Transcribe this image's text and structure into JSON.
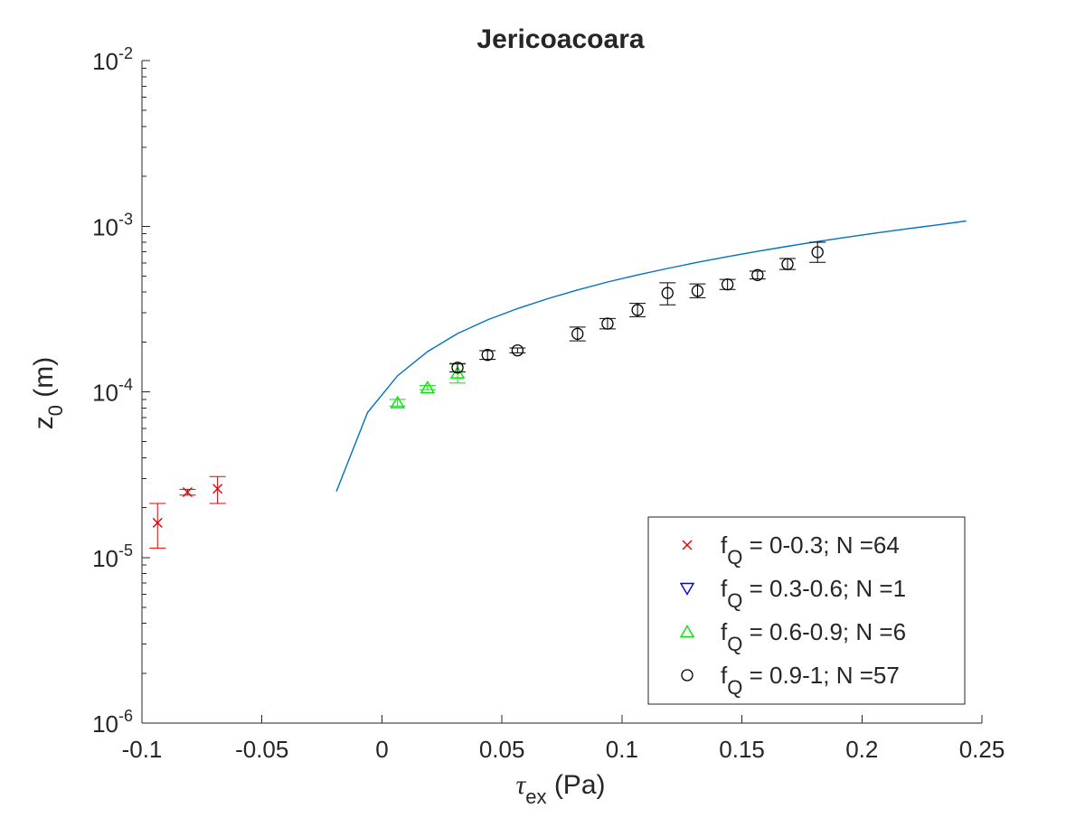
{
  "chart_data": {
    "type": "scatter",
    "title": "Jericoacoara",
    "xlabel": {
      "symbol": "τ",
      "subscript": "ex",
      "unit": " (Pa)"
    },
    "ylabel": {
      "symbol": "z",
      "subscript": "0",
      "unit": " (m)"
    },
    "xlim": [
      -0.1,
      0.25
    ],
    "ylim": [
      1e-06,
      0.01
    ],
    "yscale": "log",
    "xticks": [
      -0.1,
      -0.05,
      0,
      0.05,
      0.1,
      0.15,
      0.2,
      0.25
    ],
    "xtick_labels": [
      "-0.1",
      "-0.05",
      "0",
      "0.05",
      "0.1",
      "0.15",
      "0.2",
      "0.25"
    ],
    "yticks": [
      {
        "value": 1e-06,
        "base": "10",
        "exp": "-6"
      },
      {
        "value": 1e-05,
        "base": "10",
        "exp": "-5"
      },
      {
        "value": 0.0001,
        "base": "10",
        "exp": "-4"
      },
      {
        "value": 0.001,
        "base": "10",
        "exp": "-3"
      },
      {
        "value": 0.01,
        "base": "10",
        "exp": "-2"
      }
    ],
    "grid": false,
    "legend_position": "bottom-right",
    "series": [
      {
        "legend_label": {
          "f": "f",
          "sub": "Q",
          "rest": " = 0-0.3; N =64"
        },
        "marker": "x",
        "color": "#e60000",
        "points": [
          {
            "x": -0.0935,
            "y": 1.62e-05,
            "lo": 1.14e-05,
            "hi": 2.12e-05
          },
          {
            "x": -0.081,
            "y": 2.48e-05,
            "lo": 2.38e-05,
            "hi": 2.58e-05
          },
          {
            "x": -0.0685,
            "y": 2.6e-05,
            "lo": 2.12e-05,
            "hi": 3.08e-05
          }
        ]
      },
      {
        "legend_label": {
          "f": "f",
          "sub": "Q",
          "rest": " = 0.3-0.6; N =1"
        },
        "marker": "triangle-down",
        "color": "#0000e6",
        "points": []
      },
      {
        "legend_label": {
          "f": "f",
          "sub": "Q",
          "rest": " = 0.6-0.9; N =6"
        },
        "marker": "triangle-up",
        "color": "#00e600",
        "points": [
          {
            "x": 0.0065,
            "y": 8.6e-05,
            "lo": 8.2e-05,
            "hi": 9e-05
          },
          {
            "x": 0.019,
            "y": 0.000106,
            "lo": 0.000103,
            "hi": 0.000109
          },
          {
            "x": 0.0315,
            "y": 0.00013,
            "lo": 0.000113,
            "hi": 0.000147
          }
        ]
      },
      {
        "legend_label": {
          "f": "f",
          "sub": "Q",
          "rest": " = 0.9-1; N =57"
        },
        "marker": "circle",
        "color": "#000000",
        "points": [
          {
            "x": 0.0315,
            "y": 0.00014,
            "lo": 0.000132,
            "hi": 0.000148
          },
          {
            "x": 0.044,
            "y": 0.000167,
            "lo": 0.000157,
            "hi": 0.000177
          },
          {
            "x": 0.0565,
            "y": 0.000178,
            "lo": 0.000172,
            "hi": 0.000184
          },
          {
            "x": 0.0815,
            "y": 0.000224,
            "lo": 0.000203,
            "hi": 0.000246
          },
          {
            "x": 0.094,
            "y": 0.000258,
            "lo": 0.00024,
            "hi": 0.000277
          },
          {
            "x": 0.1065,
            "y": 0.000312,
            "lo": 0.000284,
            "hi": 0.000342
          },
          {
            "x": 0.119,
            "y": 0.000395,
            "lo": 0.000335,
            "hi": 0.000455
          },
          {
            "x": 0.1315,
            "y": 0.000407,
            "lo": 0.00037,
            "hi": 0.000448
          },
          {
            "x": 0.144,
            "y": 0.000445,
            "lo": 0.000415,
            "hi": 0.000477
          },
          {
            "x": 0.1565,
            "y": 0.000507,
            "lo": 0.00048,
            "hi": 0.000535
          },
          {
            "x": 0.169,
            "y": 0.00059,
            "lo": 0.000548,
            "hi": 0.000638
          },
          {
            "x": 0.1815,
            "y": 0.000697,
            "lo": 0.000605,
            "hi": 0.0008
          }
        ]
      }
    ],
    "curve": {
      "color": "#0072bd",
      "x": [
        -0.019,
        -0.006,
        0.0065,
        0.019,
        0.0315,
        0.044,
        0.0565,
        0.069,
        0.0815,
        0.094,
        0.1065,
        0.119,
        0.1315,
        0.144,
        0.1565,
        0.169,
        0.1815,
        0.194,
        0.2065,
        0.219,
        0.2315,
        0.2435
      ],
      "y": [
        2.5e-05,
        7.5e-05,
        0.000125,
        0.000175,
        0.000225,
        0.000272,
        0.000318,
        0.000365,
        0.000412,
        0.00046,
        0.000508,
        0.000556,
        0.000605,
        0.000655,
        0.000705,
        0.000756,
        0.000808,
        0.00086,
        0.000912,
        0.000965,
        0.001018,
        0.001075
      ]
    }
  }
}
